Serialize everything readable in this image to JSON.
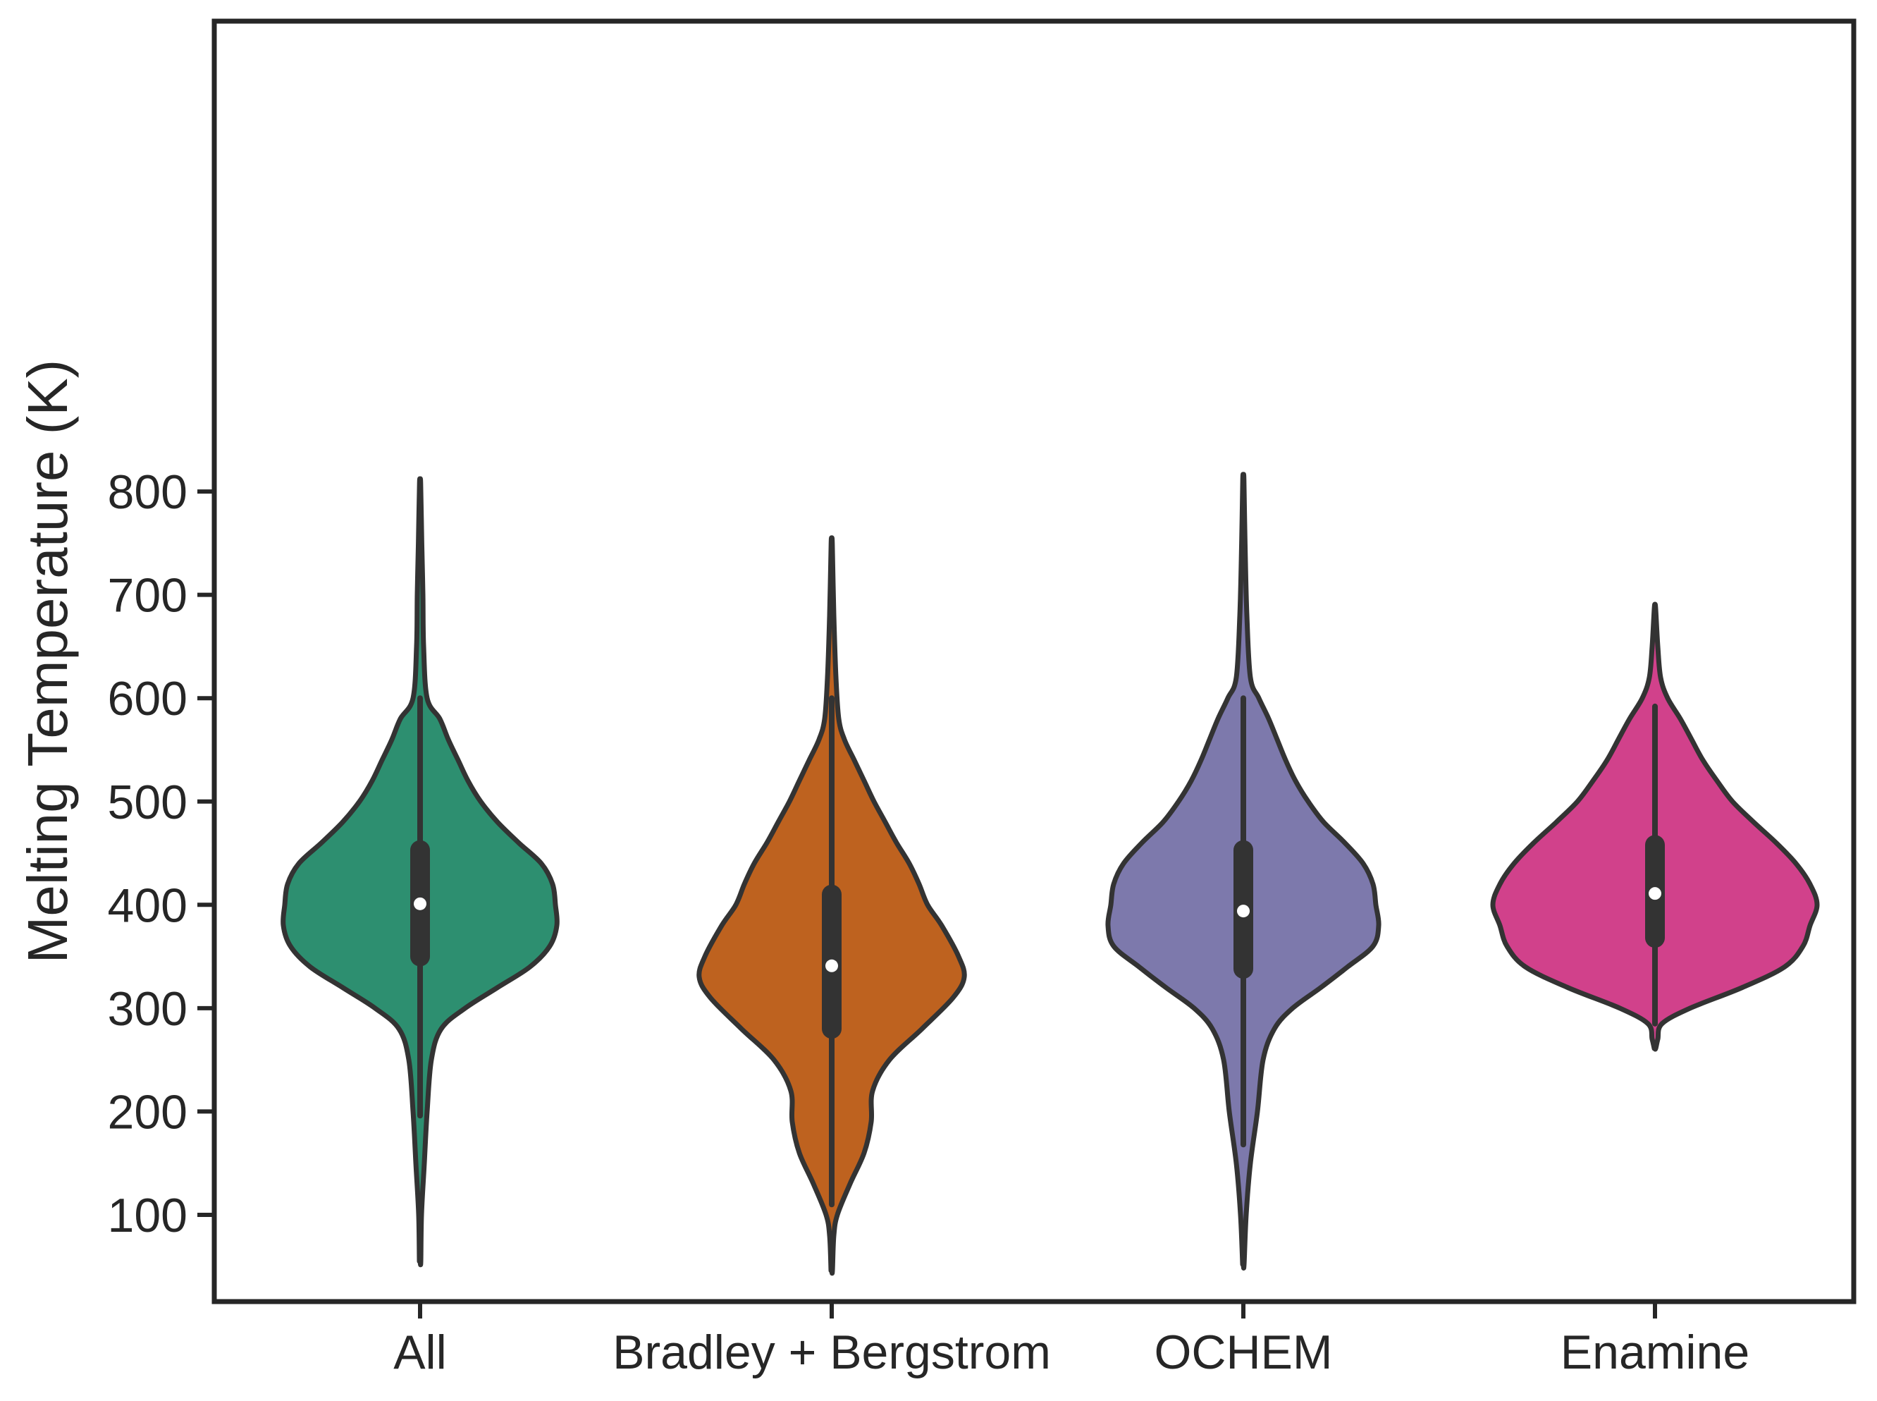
{
  "chart_data": {
    "type": "violin",
    "title": "",
    "xlabel": "",
    "ylabel": "Melting Temperature (K)",
    "ylim": [
      5,
      850
    ],
    "yticks": [
      100,
      200,
      300,
      400,
      500,
      600,
      700,
      800
    ],
    "grid": false,
    "legend": "none",
    "categories": [
      "All",
      "Bradley + Bergstrom",
      "OCHEM",
      "Enamine"
    ],
    "colors": [
      "#2d8f70",
      "#be621f",
      "#7d79ac",
      "#d1418b"
    ],
    "outline_color": "#333333",
    "series": [
      {
        "category": "All",
        "min": 55,
        "max": 808,
        "q1": 350,
        "median": 401,
        "q3": 453,
        "whisker_low": 196,
        "whisker_high": 600,
        "density": [
          [
            55,
            0.005
          ],
          [
            100,
            0.01
          ],
          [
            150,
            0.03
          ],
          [
            200,
            0.05
          ],
          [
            250,
            0.08
          ],
          [
            280,
            0.15
          ],
          [
            300,
            0.32
          ],
          [
            320,
            0.55
          ],
          [
            340,
            0.78
          ],
          [
            360,
            0.92
          ],
          [
            380,
            0.97
          ],
          [
            400,
            0.96
          ],
          [
            420,
            0.94
          ],
          [
            440,
            0.86
          ],
          [
            460,
            0.7
          ],
          [
            480,
            0.55
          ],
          [
            500,
            0.43
          ],
          [
            520,
            0.34
          ],
          [
            540,
            0.27
          ],
          [
            560,
            0.2
          ],
          [
            580,
            0.14
          ],
          [
            600,
            0.05
          ],
          [
            650,
            0.025
          ],
          [
            700,
            0.02
          ],
          [
            750,
            0.012
          ],
          [
            808,
            0.004
          ]
        ]
      },
      {
        "category": "Bradley + Bergstrom",
        "min": 46,
        "max": 750,
        "q1": 280,
        "median": 341,
        "q3": 410,
        "whisker_low": 110,
        "whisker_high": 600,
        "density": [
          [
            46,
            0.005
          ],
          [
            80,
            0.015
          ],
          [
            100,
            0.04
          ],
          [
            130,
            0.13
          ],
          [
            160,
            0.23
          ],
          [
            190,
            0.28
          ],
          [
            220,
            0.29
          ],
          [
            250,
            0.41
          ],
          [
            280,
            0.64
          ],
          [
            310,
            0.86
          ],
          [
            330,
            0.94
          ],
          [
            350,
            0.9
          ],
          [
            380,
            0.78
          ],
          [
            400,
            0.68
          ],
          [
            420,
            0.62
          ],
          [
            440,
            0.55
          ],
          [
            460,
            0.46
          ],
          [
            480,
            0.38
          ],
          [
            500,
            0.3
          ],
          [
            520,
            0.23
          ],
          [
            540,
            0.16
          ],
          [
            560,
            0.09
          ],
          [
            580,
            0.05
          ],
          [
            620,
            0.03
          ],
          [
            680,
            0.015
          ],
          [
            750,
            0.004
          ]
        ]
      },
      {
        "category": "OCHEM",
        "min": 52,
        "max": 812,
        "q1": 338,
        "median": 394,
        "q3": 453,
        "whisker_low": 168,
        "whisker_high": 600,
        "density": [
          [
            52,
            0.005
          ],
          [
            100,
            0.02
          ],
          [
            150,
            0.05
          ],
          [
            200,
            0.1
          ],
          [
            250,
            0.14
          ],
          [
            280,
            0.22
          ],
          [
            300,
            0.35
          ],
          [
            320,
            0.55
          ],
          [
            340,
            0.74
          ],
          [
            360,
            0.92
          ],
          [
            380,
            0.96
          ],
          [
            400,
            0.94
          ],
          [
            420,
            0.92
          ],
          [
            440,
            0.85
          ],
          [
            460,
            0.72
          ],
          [
            480,
            0.57
          ],
          [
            500,
            0.46
          ],
          [
            520,
            0.37
          ],
          [
            540,
            0.3
          ],
          [
            560,
            0.24
          ],
          [
            580,
            0.18
          ],
          [
            600,
            0.11
          ],
          [
            620,
            0.05
          ],
          [
            680,
            0.025
          ],
          [
            750,
            0.012
          ],
          [
            812,
            0.004
          ]
        ]
      },
      {
        "category": "Enamine",
        "min": 261,
        "max": 688,
        "q1": 368,
        "median": 411,
        "q3": 458,
        "whisker_low": 285,
        "whisker_high": 592,
        "density": [
          [
            261,
            0.005
          ],
          [
            270,
            0.02
          ],
          [
            285,
            0.05
          ],
          [
            300,
            0.25
          ],
          [
            320,
            0.62
          ],
          [
            340,
            0.92
          ],
          [
            360,
            1.05
          ],
          [
            380,
            1.1
          ],
          [
            400,
            1.15
          ],
          [
            420,
            1.1
          ],
          [
            440,
            1.0
          ],
          [
            460,
            0.86
          ],
          [
            480,
            0.7
          ],
          [
            500,
            0.55
          ],
          [
            520,
            0.44
          ],
          [
            540,
            0.34
          ],
          [
            560,
            0.26
          ],
          [
            580,
            0.18
          ],
          [
            600,
            0.09
          ],
          [
            620,
            0.04
          ],
          [
            650,
            0.02
          ],
          [
            688,
            0.004
          ]
        ]
      }
    ]
  }
}
